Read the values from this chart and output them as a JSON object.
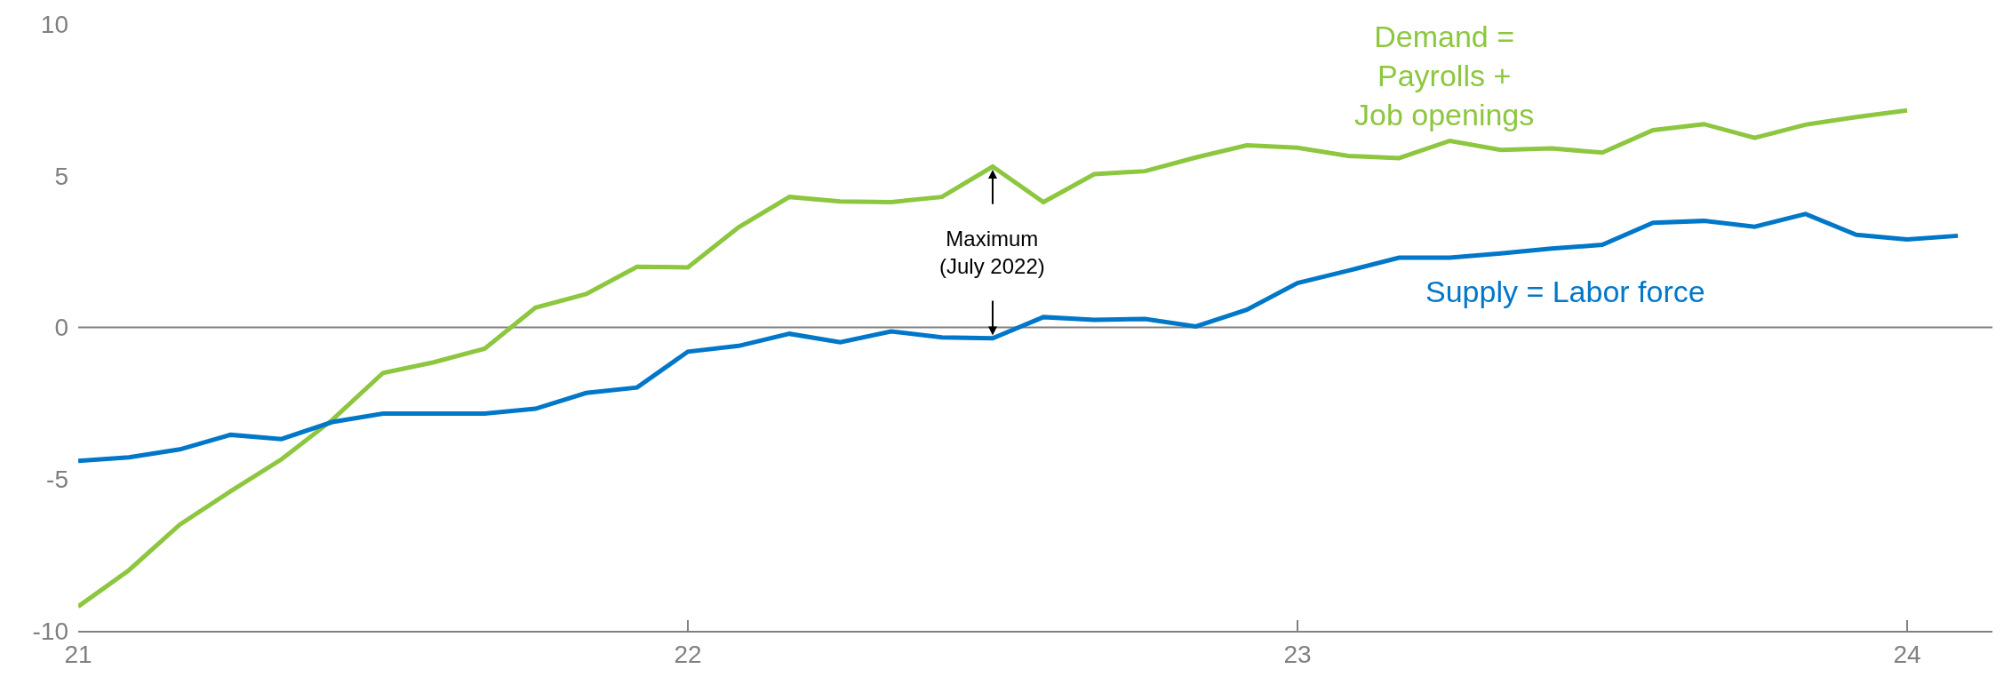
{
  "chart_data": {
    "type": "line",
    "xlim": [
      21,
      24.14
    ],
    "xticks": [
      21,
      22,
      23,
      24
    ],
    "ylim": [
      -10,
      10
    ],
    "yticks": [
      -10,
      -5,
      0,
      5,
      10
    ],
    "grid": false,
    "legend": false,
    "marker": "none",
    "line_style": "solid",
    "series": [
      {
        "name": "Demand =\nPayrolls +\nJob openings",
        "color": "#8dc63f",
        "x": [
          21.0,
          21.0833,
          21.1667,
          21.25,
          21.3333,
          21.4167,
          21.5,
          21.5833,
          21.6667,
          21.75,
          21.8333,
          21.9167,
          22.0,
          22.0833,
          22.1667,
          22.25,
          22.3333,
          22.4167,
          22.5,
          22.5833,
          22.6667,
          22.75,
          22.8333,
          22.9167,
          23.0,
          23.0833,
          23.1667,
          23.25,
          23.3333,
          23.4167,
          23.5,
          23.5833,
          23.6667,
          23.75,
          23.8333,
          23.9167,
          24.0
        ],
        "values": [
          -9.2,
          -8.0,
          -6.5,
          -5.4,
          -4.35,
          -3.05,
          -1.5,
          -1.15,
          -0.7,
          0.65,
          1.1,
          2.0,
          1.98,
          3.3,
          4.3,
          4.15,
          4.13,
          4.3,
          5.3,
          4.13,
          5.05,
          5.15,
          5.6,
          6.0,
          5.92,
          5.65,
          5.58,
          6.15,
          5.85,
          5.9,
          5.76,
          6.5,
          6.7,
          6.25,
          6.68,
          6.93,
          7.15
        ]
      },
      {
        "name": "Supply = Labor force",
        "color": "#0077c8",
        "x": [
          21.0,
          21.0833,
          21.1667,
          21.25,
          21.3333,
          21.4167,
          21.5,
          21.5833,
          21.6667,
          21.75,
          21.8333,
          21.9167,
          22.0,
          22.0833,
          22.1667,
          22.25,
          22.3333,
          22.4167,
          22.5,
          22.5833,
          22.6667,
          22.75,
          22.8333,
          22.9167,
          23.0,
          23.0833,
          23.1667,
          23.25,
          23.3333,
          23.4167,
          23.5,
          23.5833,
          23.6667,
          23.75,
          23.8333,
          23.9167,
          24.0,
          24.0833
        ],
        "values": [
          -4.4,
          -4.28,
          -4.02,
          -3.54,
          -3.68,
          -3.12,
          -2.84,
          -2.84,
          -2.84,
          -2.68,
          -2.16,
          -1.98,
          -0.8,
          -0.61,
          -0.21,
          -0.49,
          -0.13,
          -0.33,
          -0.36,
          0.34,
          0.25,
          0.28,
          0.03,
          0.58,
          1.46,
          1.87,
          2.3,
          2.3,
          2.44,
          2.6,
          2.72,
          3.45,
          3.51,
          3.32,
          3.74,
          3.05,
          2.9,
          3.02
        ]
      }
    ],
    "ref_lines": [
      {
        "axis": "y",
        "value": 0,
        "color": "#808080"
      }
    ],
    "annotations": [
      {
        "text": "Maximum\n(July 2022)",
        "x": 22.5,
        "y": 5.3
      }
    ]
  }
}
